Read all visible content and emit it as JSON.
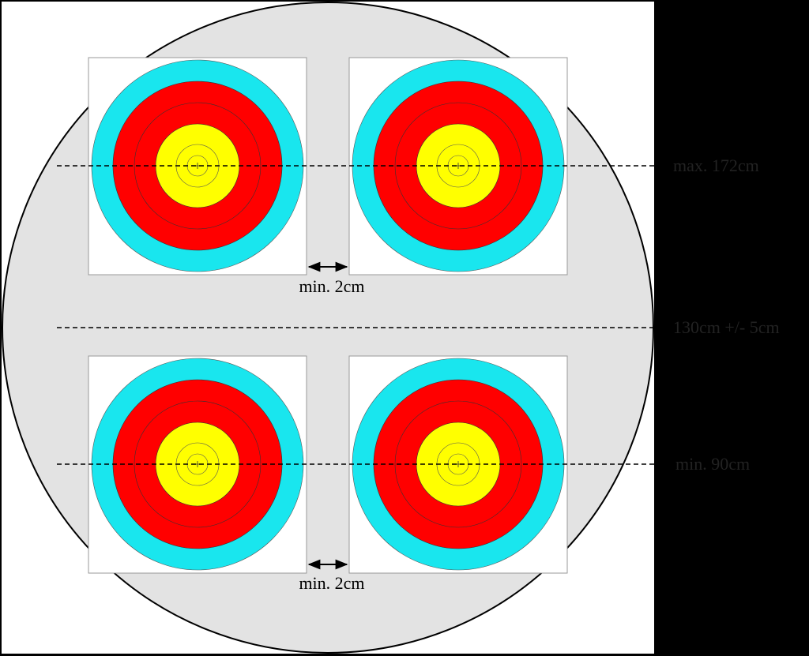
{
  "labels": {
    "max_height": "max. 172cm",
    "center_height": "130cm +/- 5cm",
    "min_height": "min. 90cm"
  },
  "gap_labels": [
    "min. 2cm",
    "min. 2cm"
  ]
}
